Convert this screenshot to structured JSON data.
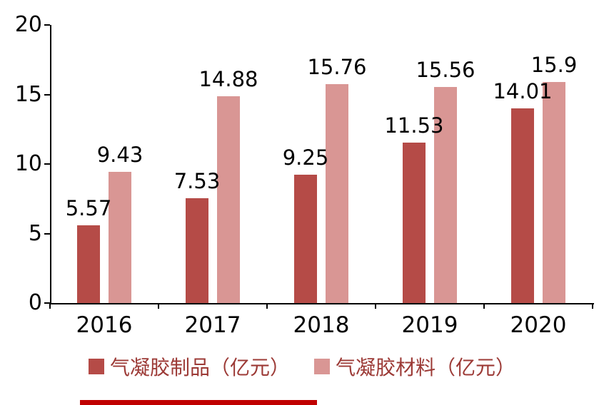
{
  "chart_data": {
    "type": "bar",
    "title": "",
    "xlabel": "",
    "ylabel": "",
    "categories": [
      "2016",
      "2017",
      "2018",
      "2019",
      "2020"
    ],
    "series": [
      {
        "name": "气凝胶制品（亿元）",
        "color": "#b54b47",
        "values": [
          5.57,
          7.53,
          9.25,
          11.53,
          14.01
        ],
        "labels": [
          "5.57",
          "7.53",
          "9.25",
          "11.53",
          "14.01"
        ]
      },
      {
        "name": "气凝胶材料（亿元）",
        "color": "#d99694",
        "values": [
          9.43,
          14.88,
          15.76,
          15.56,
          15.9
        ],
        "labels": [
          "9.43",
          "14.88",
          "15.76",
          "15.56",
          "15.9"
        ]
      }
    ],
    "ylim": [
      0,
      20
    ],
    "yticks": [
      0,
      5,
      10,
      15,
      20
    ],
    "grid": false,
    "legend_position": "bottom",
    "colors": {
      "axis": "#000000",
      "value_label_text": "#000000",
      "legend_text": "#9c3a36",
      "cropped_caption_red": "#c00000"
    }
  }
}
